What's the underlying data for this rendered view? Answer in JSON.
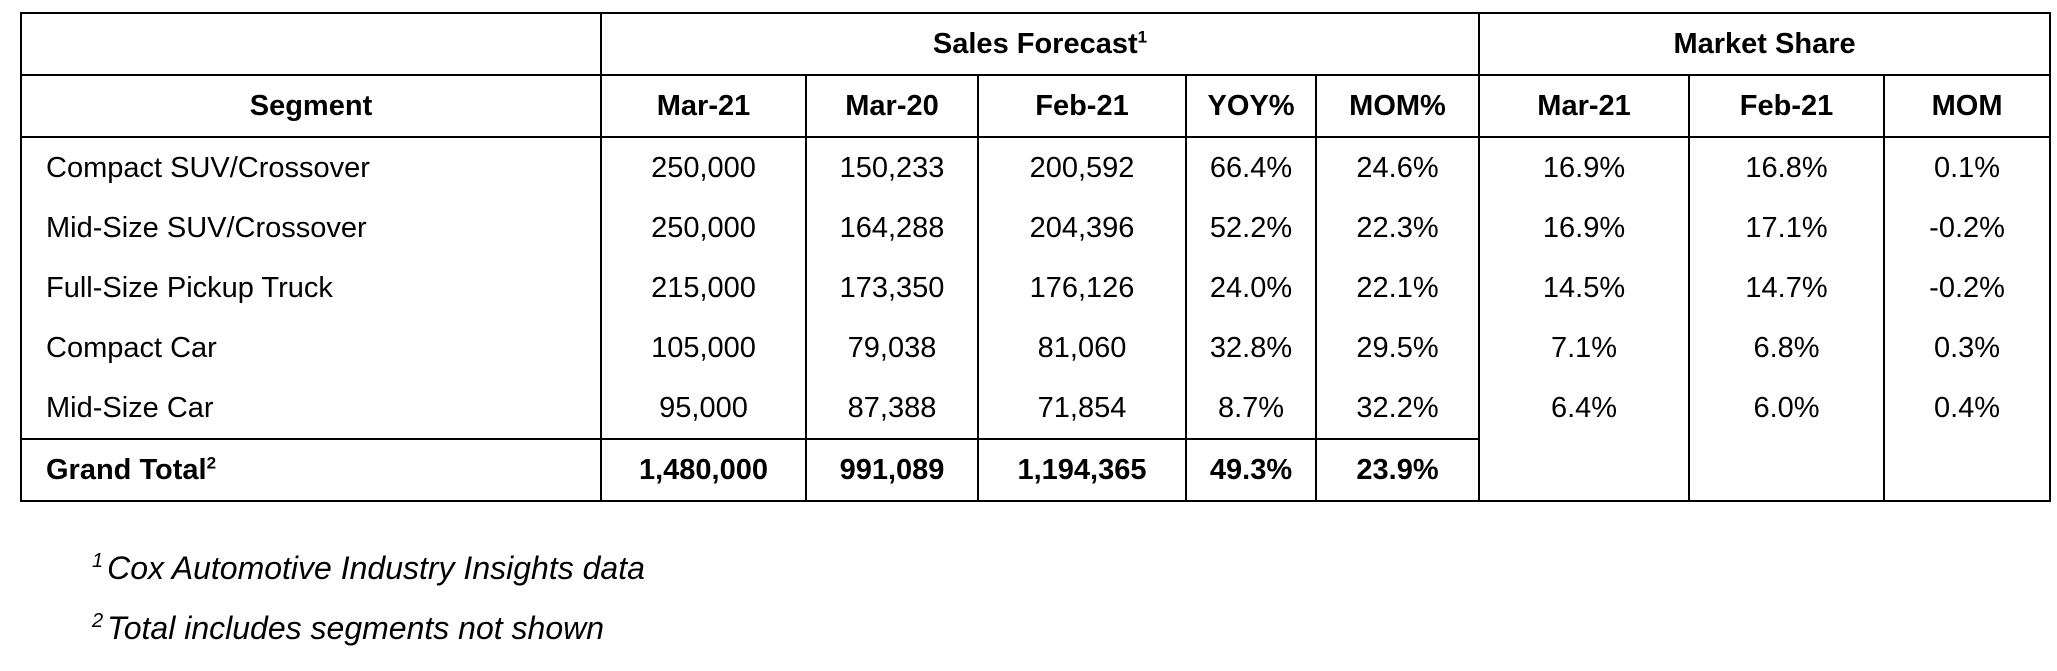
{
  "table": {
    "group_headers": {
      "sales_forecast": "Sales Forecast",
      "sales_forecast_note": "1",
      "market_share": "Market Share"
    },
    "columns": {
      "segment": "Segment",
      "sf_mar21": "Mar-21",
      "sf_mar20": "Mar-20",
      "sf_feb21": "Feb-21",
      "yoy": "YOY%",
      "mom_pct": "MOM%",
      "ms_mar21": "Mar-21",
      "ms_feb21": "Feb-21",
      "mom": "MOM"
    },
    "rows": [
      {
        "segment": "Compact SUV/Crossover",
        "mar21": "250,000",
        "mar20": "150,233",
        "feb21": "200,592",
        "yoy": "66.4%",
        "mom_pct": "24.6%",
        "ms_mar21": "16.9%",
        "ms_feb21": "16.8%",
        "ms_mom": "0.1%"
      },
      {
        "segment": "Mid-Size SUV/Crossover",
        "mar21": "250,000",
        "mar20": "164,288",
        "feb21": "204,396",
        "yoy": "52.2%",
        "mom_pct": "22.3%",
        "ms_mar21": "16.9%",
        "ms_feb21": "17.1%",
        "ms_mom": "-0.2%"
      },
      {
        "segment": "Full-Size Pickup Truck",
        "mar21": "215,000",
        "mar20": "173,350",
        "feb21": "176,126",
        "yoy": "24.0%",
        "mom_pct": "22.1%",
        "ms_mar21": "14.5%",
        "ms_feb21": "14.7%",
        "ms_mom": "-0.2%"
      },
      {
        "segment": "Compact Car",
        "mar21": "105,000",
        "mar20": "79,038",
        "feb21": "81,060",
        "yoy": "32.8%",
        "mom_pct": "29.5%",
        "ms_mar21": "7.1%",
        "ms_feb21": "6.8%",
        "ms_mom": "0.3%"
      },
      {
        "segment": "Mid-Size Car",
        "mar21": "95,000",
        "mar20": "87,388",
        "feb21": "71,854",
        "yoy": "8.7%",
        "mom_pct": "32.2%",
        "ms_mar21": "6.4%",
        "ms_feb21": "6.0%",
        "ms_mom": "0.4%"
      }
    ],
    "total": {
      "label": "Grand Total",
      "note": "2",
      "mar21": "1,480,000",
      "mar20": "991,089",
      "feb21": "1,194,365",
      "yoy": "49.3%",
      "mom_pct": "23.9%"
    }
  },
  "footnotes": [
    {
      "marker": "1",
      "text": "Cox Automotive Industry Insights data"
    },
    {
      "marker": "2",
      "text": "Total includes segments not shown"
    }
  ]
}
